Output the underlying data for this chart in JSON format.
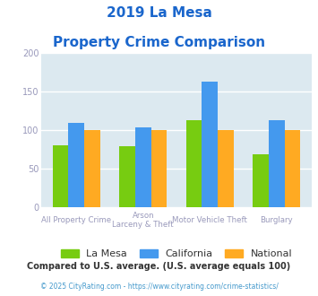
{
  "title_line1": "2019 La Mesa",
  "title_line2": "Property Crime Comparison",
  "cat_labels_row1": [
    "All Property Crime",
    "Arson",
    "Motor Vehicle Theft",
    "Burglary"
  ],
  "cat_labels_row2": [
    "",
    "Larceny & Theft",
    "",
    ""
  ],
  "la_mesa": [
    80,
    79,
    113,
    69
  ],
  "california": [
    110,
    104,
    163,
    113
  ],
  "national": [
    100,
    100,
    100,
    100
  ],
  "colors": {
    "la_mesa": "#77cc11",
    "california": "#4499ee",
    "national": "#ffaa22"
  },
  "ylim": [
    0,
    200
  ],
  "yticks": [
    0,
    50,
    100,
    150,
    200
  ],
  "legend_labels": [
    "La Mesa",
    "California",
    "National"
  ],
  "footnote1": "Compared to U.S. average. (U.S. average equals 100)",
  "footnote2": "© 2025 CityRating.com - https://www.cityrating.com/crime-statistics/",
  "bg_color": "#dce9f0",
  "grid_color": "#ffffff",
  "title_color": "#1a66cc",
  "axis_label_color": "#9999bb",
  "footnote1_color": "#333333",
  "footnote2_color": "#4499cc"
}
